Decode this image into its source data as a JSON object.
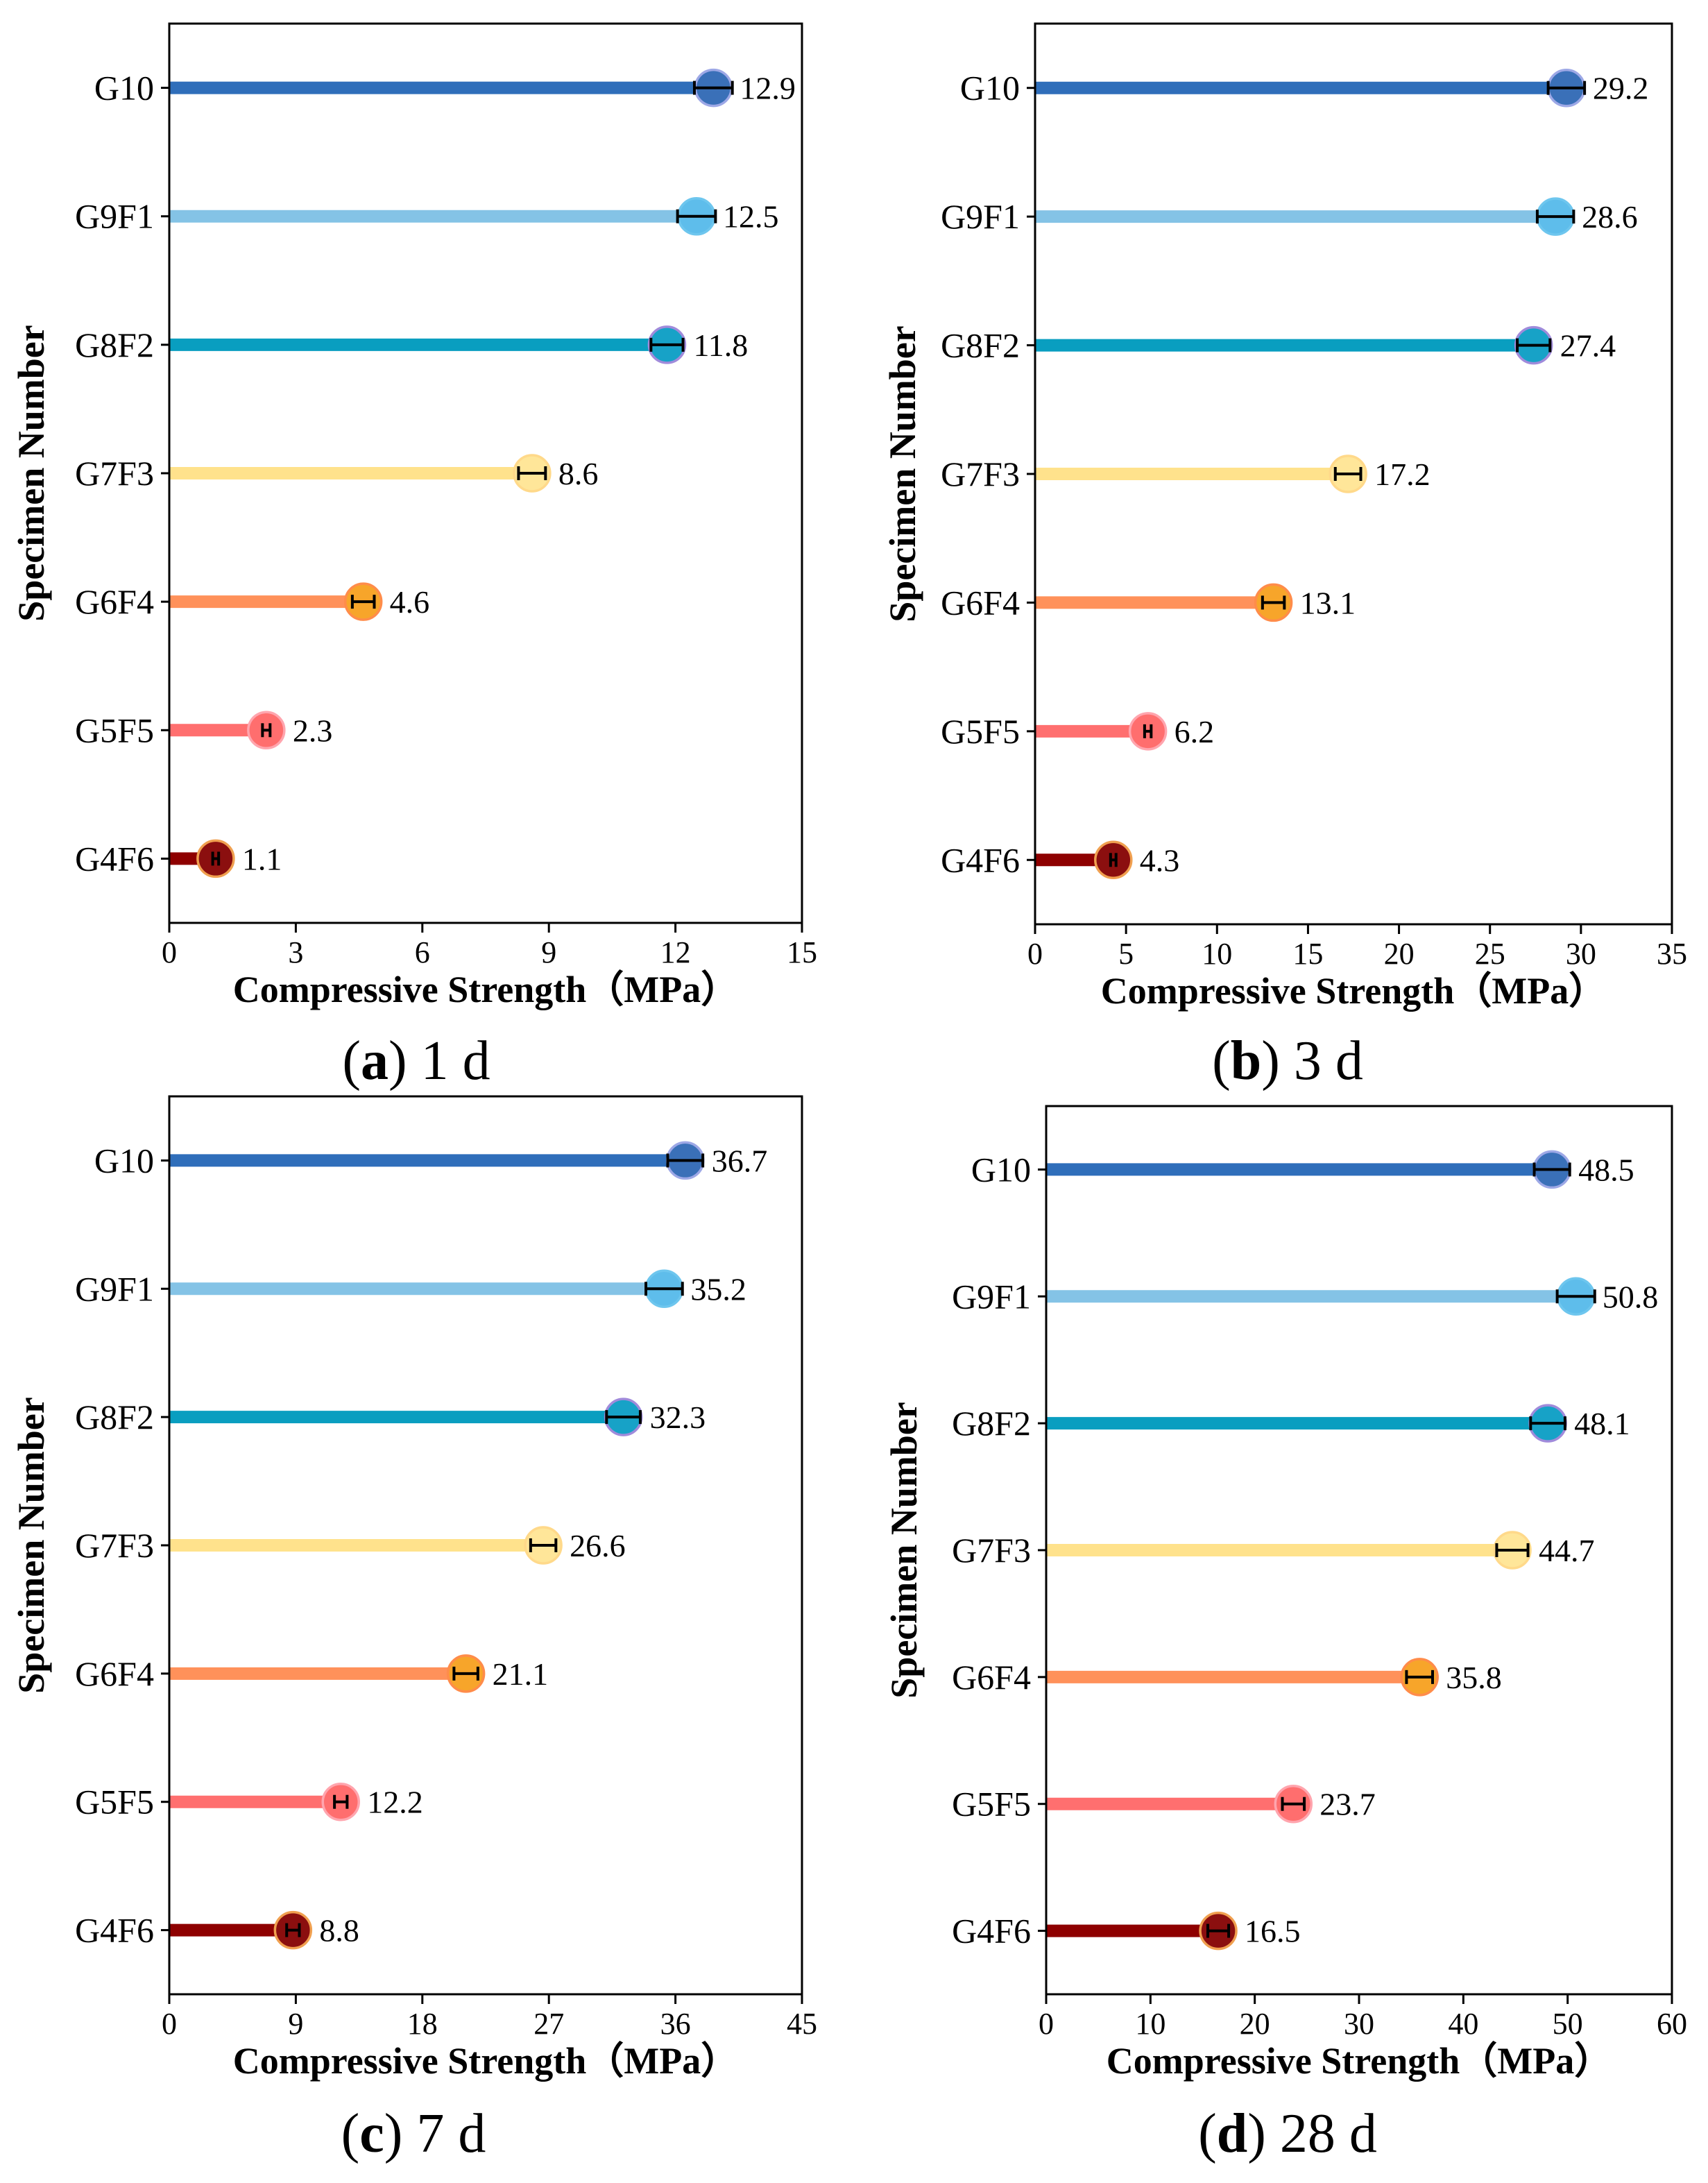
{
  "colors": {
    "line": [
      "#2F6EBA",
      "#84C3E6",
      "#099EC0",
      "#FFE28C",
      "#FF915A",
      "#FF6F6F",
      "#8E0000"
    ],
    "marker": [
      "#3A70B8",
      "#5EBDEB",
      "#17A2C7",
      "#FFE699",
      "#F7A52A",
      "#FF6E6E",
      "#8B0F0F"
    ],
    "marker_edge": [
      "#9DA8E6",
      "#6EC6EE",
      "#A08BDB",
      "#FFD98A",
      "#FF8C4A",
      "#FFA5AE",
      "#F0A050"
    ],
    "error_bar": "#000000",
    "axis": "#000000"
  },
  "chart_data": [
    {
      "type": "bar",
      "orientation": "horizontal",
      "caption": {
        "open": "(",
        "letter": "a",
        "close": ")",
        "text": "1 d"
      },
      "xlabel": "Compressive Strength（MPa）",
      "ylabel": "Specimen Number",
      "categories": [
        "G10",
        "G9F1",
        "G8F2",
        "G7F3",
        "G6F4",
        "G5F5",
        "G4F6"
      ],
      "values": [
        12.9,
        12.5,
        11.8,
        8.6,
        4.6,
        2.3,
        1.1
      ],
      "errors": [
        0.45,
        0.45,
        0.38,
        0.32,
        0.26,
        0.09,
        0.07
      ],
      "xlim": [
        0,
        15
      ],
      "xticks": [
        0,
        3,
        6,
        9,
        12,
        15
      ]
    },
    {
      "type": "bar",
      "orientation": "horizontal",
      "caption": {
        "open": "(",
        "letter": "b",
        "close": ")",
        "text": "3 d"
      },
      "xlabel": "Compressive Strength（MPa）",
      "ylabel": "Specimen Number",
      "categories": [
        "G10",
        "G9F1",
        "G8F2",
        "G7F3",
        "G6F4",
        "G5F5",
        "G4F6"
      ],
      "values": [
        29.2,
        28.6,
        27.4,
        17.2,
        13.1,
        6.2,
        4.3
      ],
      "errors": [
        1.0,
        1.0,
        0.9,
        0.7,
        0.6,
        0.18,
        0.15
      ],
      "xlim": [
        0,
        35
      ],
      "xticks": [
        0,
        5,
        10,
        15,
        20,
        25,
        30,
        35
      ]
    },
    {
      "type": "bar",
      "orientation": "horizontal",
      "caption": {
        "open": "(",
        "letter": "c",
        "close": ")",
        "text": "7 d"
      },
      "xlabel": "Compressive Strength（MPa）",
      "ylabel": "Specimen Number",
      "categories": [
        "G10",
        "G9F1",
        "G8F2",
        "G7F3",
        "G6F4",
        "G5F5",
        "G4F6"
      ],
      "values": [
        36.7,
        35.2,
        32.3,
        26.6,
        21.1,
        12.2,
        8.8
      ],
      "errors": [
        1.25,
        1.3,
        1.2,
        0.9,
        0.85,
        0.45,
        0.45
      ],
      "xlim": [
        0,
        45
      ],
      "xticks": [
        0,
        9,
        18,
        27,
        36,
        45
      ]
    },
    {
      "type": "bar",
      "orientation": "horizontal",
      "caption": {
        "open": "(",
        "letter": "d",
        "close": ")",
        "text": "28 d"
      },
      "xlabel": "Compressive Strength（MPa）",
      "ylabel": "Specimen Number",
      "categories": [
        "G10",
        "G9F1",
        "G8F2",
        "G7F3",
        "G6F4",
        "G5F5",
        "G4F6"
      ],
      "values": [
        48.5,
        50.8,
        48.1,
        44.7,
        35.8,
        23.7,
        16.5
      ],
      "errors": [
        1.7,
        1.8,
        1.65,
        1.5,
        1.25,
        1.05,
        1.0
      ],
      "xlim": [
        0,
        60
      ],
      "xticks": [
        0,
        10,
        20,
        30,
        40,
        50,
        60
      ]
    }
  ]
}
